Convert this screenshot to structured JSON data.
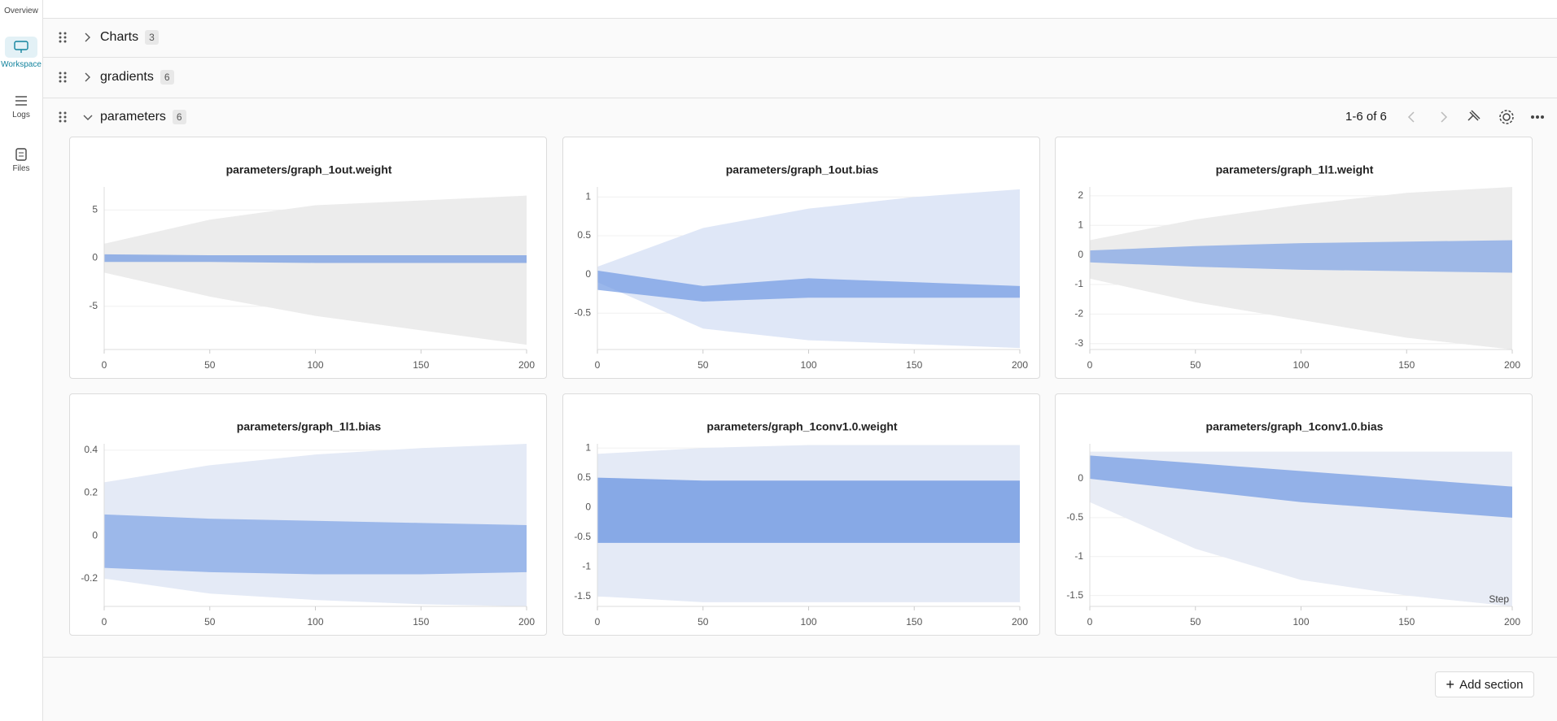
{
  "sidebar": {
    "items": [
      "Overview",
      "Workspace",
      "Logs",
      "Files"
    ]
  },
  "sections": [
    {
      "name": "Charts",
      "count": 3
    },
    {
      "name": "gradients",
      "count": 6
    },
    {
      "name": "parameters",
      "count": 6
    }
  ],
  "pagination": "1-6 of 6",
  "add_section": "Add section",
  "chart_data": [
    {
      "type": "heatmap",
      "title": "parameters/graph_1out.weight",
      "x": [
        0,
        50,
        100,
        150,
        200
      ],
      "envelope": {
        "lower": [
          -1.5,
          -4,
          -6,
          -7.5,
          -9
        ],
        "upper": [
          1.5,
          4,
          5.5,
          6,
          6.5
        ]
      },
      "core": {
        "lower": [
          -0.4,
          -0.4,
          -0.5,
          -0.5,
          -0.5
        ],
        "upper": [
          0.4,
          0.3,
          0.3,
          0.3,
          0.3
        ]
      },
      "envelope_color": "#ececec",
      "core_color": "#6f98e3",
      "xlim": [
        0,
        200
      ],
      "xticks": [
        0,
        50,
        100,
        150,
        200
      ],
      "ylim": [
        -9.5,
        7.4
      ],
      "yticks": [
        5,
        0,
        -5
      ],
      "grid": true
    },
    {
      "type": "heatmap",
      "title": "parameters/graph_1out.bias",
      "x": [
        0,
        50,
        100,
        150,
        200
      ],
      "envelope": {
        "lower": [
          -0.1,
          -0.7,
          -0.85,
          -0.9,
          -0.95
        ],
        "upper": [
          0.1,
          0.6,
          0.85,
          1,
          1.1
        ]
      },
      "core": {
        "lower": [
          -0.2,
          -0.35,
          -0.3,
          -0.3,
          -0.3
        ],
        "upper": [
          0.05,
          -0.15,
          -0.05,
          -0.1,
          -0.15
        ]
      },
      "envelope_color": "#dfe7f7",
      "core_color": "#6f98e3",
      "xlim": [
        0,
        200
      ],
      "xticks": [
        0,
        50,
        100,
        150,
        200
      ],
      "ylim": [
        -0.97,
        1.13
      ],
      "yticks": [
        1,
        0.5,
        0,
        -0.5
      ],
      "grid": true
    },
    {
      "type": "heatmap",
      "title": "parameters/graph_1l1.weight",
      "x": [
        0,
        50,
        100,
        150,
        200
      ],
      "envelope": {
        "lower": [
          -0.8,
          -1.6,
          -2.2,
          -2.8,
          -3.2
        ],
        "upper": [
          0.5,
          1.2,
          1.7,
          2.1,
          2.3
        ]
      },
      "core": {
        "lower": [
          -0.25,
          -0.4,
          -0.5,
          -0.55,
          -0.6
        ],
        "upper": [
          0.15,
          0.3,
          0.4,
          0.45,
          0.5
        ]
      },
      "envelope_color": "#ececec",
      "core_color": "#7ea2e6",
      "xlim": [
        0,
        200
      ],
      "xticks": [
        0,
        50,
        100,
        150,
        200
      ],
      "ylim": [
        -3.2,
        2.3
      ],
      "yticks": [
        2,
        1,
        0,
        -1,
        -2,
        -3
      ],
      "grid": true
    },
    {
      "type": "heatmap",
      "title": "parameters/graph_1l1.bias",
      "x": [
        0,
        50,
        100,
        150,
        200
      ],
      "envelope": {
        "lower": [
          -0.2,
          -0.27,
          -0.3,
          -0.32,
          -0.33
        ],
        "upper": [
          0.25,
          0.33,
          0.38,
          0.41,
          0.43
        ]
      },
      "core": {
        "lower": [
          -0.15,
          -0.17,
          -0.18,
          -0.18,
          -0.17
        ],
        "upper": [
          0.1,
          0.08,
          0.07,
          0.06,
          0.05
        ]
      },
      "envelope_color": "#e4eaf6",
      "core_color": "#7ea2e6",
      "xlim": [
        0,
        200
      ],
      "xticks": [
        0,
        50,
        100,
        150,
        200
      ],
      "ylim": [
        -0.33,
        0.43
      ],
      "yticks": [
        0.4,
        0.2,
        0,
        -0.2
      ],
      "grid": true
    },
    {
      "type": "heatmap",
      "title": "parameters/graph_1conv1.0.weight",
      "x": [
        0,
        50,
        100,
        150,
        200
      ],
      "envelope": {
        "lower": [
          -1.5,
          -1.6,
          -1.6,
          -1.6,
          -1.6
        ],
        "upper": [
          0.9,
          1,
          1.05,
          1.05,
          1.05
        ]
      },
      "core": {
        "lower": [
          -0.6,
          -0.6,
          -0.6,
          -0.6,
          -0.6
        ],
        "upper": [
          0.5,
          0.45,
          0.45,
          0.45,
          0.45
        ]
      },
      "envelope_color": "#e4eaf6",
      "core_color": "#5f8ddf",
      "xlim": [
        0,
        200
      ],
      "xticks": [
        0,
        50,
        100,
        150,
        200
      ],
      "ylim": [
        -1.67,
        1.07
      ],
      "yticks": [
        1,
        0.5,
        0,
        -0.5,
        -1,
        -1.5
      ],
      "grid": true
    },
    {
      "type": "heatmap",
      "title": "parameters/graph_1conv1.0.bias",
      "x": [
        0,
        50,
        100,
        150,
        200
      ],
      "envelope": {
        "lower": [
          -0.3,
          -0.9,
          -1.3,
          -1.5,
          -1.64
        ],
        "upper": [
          0.35,
          0.35,
          0.35,
          0.35,
          0.35
        ]
      },
      "core": {
        "lower": [
          0,
          -0.15,
          -0.3,
          -0.4,
          -0.5
        ],
        "upper": [
          0.3,
          0.2,
          0.1,
          0,
          -0.1
        ]
      },
      "envelope_color": "#e8ecf5",
      "core_color": "#6f98e3",
      "x_label": "Step",
      "xlim": [
        0,
        200
      ],
      "xticks": [
        0,
        50,
        100,
        150,
        200
      ],
      "ylim": [
        -1.64,
        0.45
      ],
      "yticks": [
        0,
        -0.5,
        -1,
        -1.5
      ],
      "grid": true
    }
  ]
}
